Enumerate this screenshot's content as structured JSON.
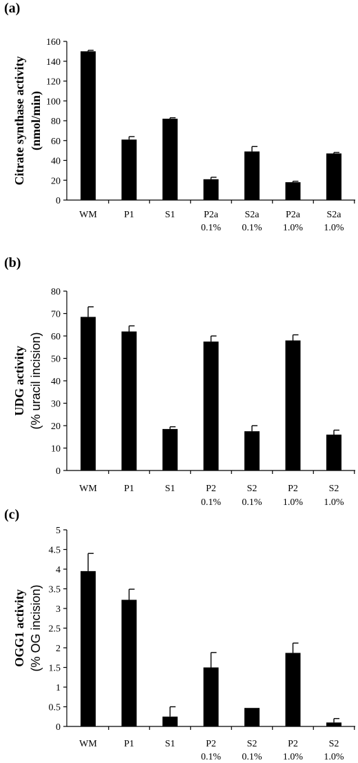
{
  "chart_data": [
    {
      "panel_label": "(a)",
      "type": "bar",
      "categories": [
        "WM",
        "P1",
        "S1",
        "P2a",
        "S2a",
        "P2a",
        "S2a"
      ],
      "category_sublabels": [
        "",
        "",
        "",
        "0.1%",
        "0.1%",
        "1.0%",
        "1.0%"
      ],
      "values": [
        150,
        61,
        82,
        21,
        49,
        18,
        47
      ],
      "errors": [
        1,
        3,
        1,
        2,
        5,
        1,
        1
      ],
      "ylabel": [
        "Citrate synthase activity",
        "(nmol/min)"
      ],
      "ylim": [
        0,
        160
      ],
      "yticks": [
        0,
        20,
        40,
        60,
        80,
        100,
        120,
        140,
        160
      ],
      "ytick_labels": [
        "0",
        "20",
        "40",
        "60",
        "80",
        "100",
        "120",
        "140",
        "160"
      ]
    },
    {
      "panel_label": "(b)",
      "type": "bar",
      "categories": [
        "WM",
        "P1",
        "S1",
        "P2",
        "S2",
        "P2",
        "S2"
      ],
      "category_sublabels": [
        "",
        "",
        "",
        "0.1%",
        "0.1%",
        "1.0%",
        "1.0%"
      ],
      "values": [
        68.5,
        62,
        18.5,
        57.5,
        17.5,
        58,
        16
      ],
      "errors": [
        4.5,
        2.5,
        1,
        2.5,
        2.5,
        2.5,
        2
      ],
      "ylabel": [
        "UDG activity",
        "(% uracil incision)"
      ],
      "ylim": [
        0,
        80
      ],
      "yticks": [
        0,
        10,
        20,
        30,
        40,
        50,
        60,
        70,
        80
      ],
      "ytick_labels": [
        "0",
        "10",
        "20",
        "30",
        "40",
        "50",
        "60",
        "70",
        "80"
      ]
    },
    {
      "panel_label": "(c)",
      "type": "bar",
      "categories": [
        "WM",
        "P1",
        "S1",
        "P2",
        "S2",
        "P2",
        "S2"
      ],
      "category_sublabels": [
        "",
        "",
        "",
        "0.1%",
        "0.1%",
        "1.0%",
        "1.0%"
      ],
      "values": [
        3.95,
        3.22,
        0.25,
        1.5,
        0.47,
        1.87,
        0.1
      ],
      "errors": [
        0.45,
        0.27,
        0.25,
        0.38,
        0.0,
        0.25,
        0.1
      ],
      "ylabel": [
        "OGG1 activity",
        "(% OG incision)"
      ],
      "ylim": [
        0,
        5
      ],
      "yticks": [
        0,
        0.5,
        1,
        1.5,
        2,
        2.5,
        3,
        3.5,
        4,
        4.5,
        5
      ],
      "ytick_labels": [
        "0",
        "0.5",
        "1",
        "1.5",
        "2",
        "2.5",
        "3",
        "3.5",
        "4",
        "4.5",
        "5"
      ]
    }
  ]
}
